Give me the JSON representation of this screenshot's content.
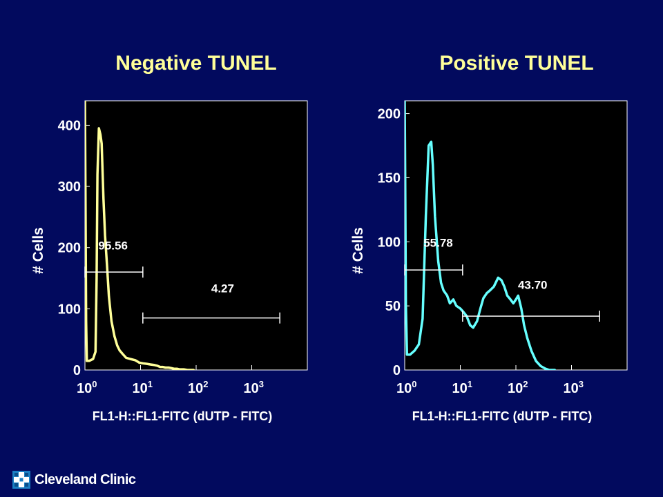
{
  "slide": {
    "brand_name": "Cleveland Clinic",
    "background": "#020a5e"
  },
  "chart_data": [
    {
      "type": "line",
      "title": "Negative TUNEL",
      "xlabel": "FL1-H::FL1-FITC (dUTP - FITC)",
      "ylabel": "# Cells",
      "x_scale": "log",
      "xlim": [
        1,
        10000
      ],
      "ylim": [
        0,
        440
      ],
      "y_ticks": [
        0,
        100,
        200,
        300,
        400
      ],
      "x_ticks": [
        1,
        10,
        100,
        1000
      ],
      "x_tick_labels": [
        {
          "base": "10",
          "exp": "0"
        },
        {
          "base": "10",
          "exp": "1"
        },
        {
          "base": "10",
          "exp": "2"
        },
        {
          "base": "10",
          "exp": "3"
        }
      ],
      "color": "#ffff99",
      "series": [
        {
          "x": [
            1.0,
            1.02,
            1.05,
            1.08,
            1.2,
            1.4,
            1.55,
            1.62,
            1.68,
            1.78,
            1.9,
            2.0,
            2.15,
            2.3,
            2.5,
            2.7,
            3.0,
            3.4,
            3.8,
            4.2,
            4.8,
            5.5,
            6.5,
            8.0,
            9.5,
            11.0,
            13.0,
            15.0,
            18.0,
            20.0,
            22.5,
            25.0,
            28.0,
            32.0,
            36.0,
            40.0,
            45.0,
            50.0,
            55.0,
            60.0,
            70.0,
            80.0,
            90.0
          ],
          "y": [
            440,
            300,
            80,
            15,
            15,
            18,
            30,
            150,
            320,
            395,
            385,
            370,
            280,
            220,
            170,
            120,
            80,
            55,
            40,
            32,
            26,
            20,
            18,
            16,
            12,
            11,
            10,
            9,
            8,
            7,
            5,
            5,
            4,
            4,
            3,
            2,
            2,
            1,
            1,
            1,
            0,
            0,
            0
          ]
        }
      ],
      "gates": [
        {
          "label": "95.56",
          "x_start": 1,
          "x_end": 11,
          "y": 160,
          "label_x": 3.2,
          "label_y": 205
        },
        {
          "label": "4.27",
          "x_start": 11,
          "x_end": 3200,
          "y": 85,
          "label_x": 300,
          "label_y": 135
        }
      ]
    },
    {
      "type": "line",
      "title": "Positive TUNEL",
      "xlabel": "FL1-H::FL1-FITC (dUTP - FITC)",
      "ylabel": "# Cells",
      "x_scale": "log",
      "xlim": [
        1,
        10000
      ],
      "ylim": [
        0,
        210
      ],
      "y_ticks": [
        0,
        50,
        100,
        150,
        200
      ],
      "x_ticks": [
        1,
        10,
        100,
        1000
      ],
      "x_tick_labels": [
        {
          "base": "10",
          "exp": "0"
        },
        {
          "base": "10",
          "exp": "1"
        },
        {
          "base": "10",
          "exp": "2"
        },
        {
          "base": "10",
          "exp": "3"
        }
      ],
      "color": "#66ffff",
      "series": [
        {
          "x": [
            1.0,
            1.02,
            1.05,
            1.1,
            1.25,
            1.5,
            1.8,
            2.1,
            2.4,
            2.7,
            3.0,
            3.2,
            3.5,
            4.0,
            4.5,
            5.0,
            5.8,
            6.5,
            7.5,
            8.5,
            10.0,
            11.5,
            13.0,
            15.0,
            17.0,
            20.0,
            23.0,
            26.0,
            30.0,
            34.0,
            40.0,
            48.0,
            55.0,
            62.0,
            70.0,
            80.0,
            90.0,
            100.0,
            110.0,
            125.0,
            140.0,
            160.0,
            190.0,
            230.0,
            280.0,
            340.0,
            400.0,
            500.0
          ],
          "y": [
            210,
            150,
            50,
            12,
            12,
            15,
            20,
            40,
            120,
            175,
            178,
            160,
            120,
            85,
            68,
            62,
            58,
            52,
            55,
            50,
            48,
            45,
            42,
            35,
            33,
            38,
            48,
            56,
            60,
            62,
            65,
            72,
            70,
            65,
            58,
            55,
            52,
            55,
            58,
            48,
            35,
            25,
            15,
            7,
            3,
            1,
            0,
            0
          ]
        }
      ],
      "gates": [
        {
          "label": "55.78",
          "x_start": 1,
          "x_end": 11,
          "y": 78,
          "label_x": 4.0,
          "label_y": 100
        },
        {
          "label": "43.70",
          "x_start": 11,
          "x_end": 3200,
          "y": 42,
          "label_x": 200,
          "label_y": 67
        }
      ]
    }
  ]
}
